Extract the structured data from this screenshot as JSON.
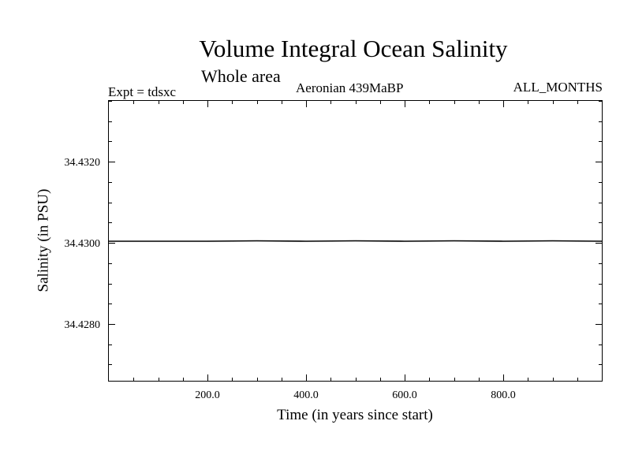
{
  "chart_data": {
    "type": "line",
    "title": "Volume Integral Ocean Salinity",
    "subtitle": "Whole area",
    "annotations": {
      "left": "Expt = tdsxc",
      "center": "Aeronian 439MaBP",
      "right": "ALL_MONTHS"
    },
    "xlabel": "Time (in years since start)",
    "ylabel": "Salinity (in PSU)",
    "xlim": [
      0,
      1000
    ],
    "ylim": [
      34.4266,
      34.4335
    ],
    "xticks": [
      200,
      400,
      600,
      800
    ],
    "xtick_labels": [
      "200.0",
      "400.0",
      "600.0",
      "800.0"
    ],
    "yticks": [
      34.428,
      34.43,
      34.432
    ],
    "ytick_labels": [
      "34.4280",
      "34.4300",
      "34.4320"
    ],
    "grid": false,
    "series": [
      {
        "x": [
          0,
          100,
          200,
          300,
          400,
          500,
          600,
          700,
          800,
          900,
          1000
        ],
        "y": [
          34.43004,
          34.43004,
          34.43004,
          34.43005,
          34.43004,
          34.43005,
          34.43004,
          34.43005,
          34.43004,
          34.43005,
          34.43004
        ]
      }
    ],
    "line_color": "#000000"
  }
}
